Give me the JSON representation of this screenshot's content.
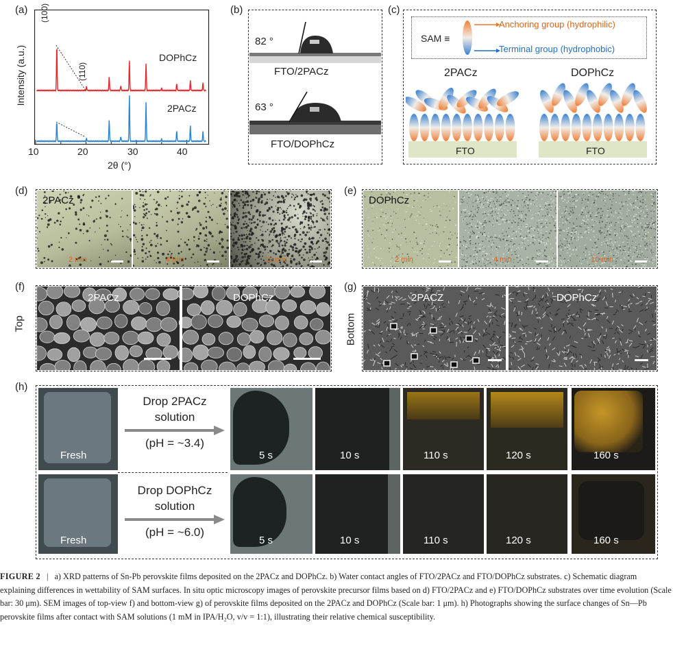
{
  "panels": {
    "a": "(a)",
    "b": "(b)",
    "c": "(c)",
    "d": "(d)",
    "e": "(e)",
    "f": "(f)",
    "g": "(g)",
    "h": "(h)"
  },
  "xrd": {
    "ylabel": "Intensity (a.u.)",
    "xlabel": "2θ (°)",
    "xticks": [
      "10",
      "20",
      "30",
      "40"
    ],
    "series_labels": [
      "DOPhCz",
      "2PACz"
    ],
    "peak_labels": [
      "(100)",
      "(110)"
    ],
    "colors": {
      "DOPhCz": "#e8262a",
      "2PACz": "#2a84d6"
    }
  },
  "chart_data": {
    "type": "line",
    "xlabel": "2θ (°)",
    "ylabel": "Intensity (a.u.)",
    "xlim": [
      10,
      44
    ],
    "series": [
      {
        "name": "DOPhCz",
        "peaks_2theta": [
          14.2,
          20.1,
          24.6,
          26.9,
          28.6,
          31.9,
          35.0,
          38.0,
          40.7,
          43.2
        ],
        "peak_rel_height": [
          0.95,
          0.08,
          0.28,
          0.1,
          0.62,
          0.55,
          0.05,
          0.14,
          0.2,
          0.15
        ]
      },
      {
        "name": "2PACz",
        "peaks_2theta": [
          14.2,
          20.1,
          24.6,
          26.9,
          28.6,
          31.9,
          35.0,
          38.0,
          40.7,
          43.2
        ],
        "peak_rel_height": [
          0.42,
          0.06,
          0.45,
          0.1,
          0.98,
          0.82,
          0.05,
          0.22,
          0.32,
          0.2
        ]
      }
    ]
  },
  "contact": {
    "angle1": "82 °",
    "label1": "FTO/2PACz",
    "angle2": "63 °",
    "label2": "FTO/DOPhCz"
  },
  "schematic": {
    "sam_label": "SAM ≡",
    "anchoring": "Anchoring group (hydrophilic)",
    "terminal": "Terminal group (hydrophobic)",
    "left_title": "2PACz",
    "right_title": "DOPhCz",
    "substrate": "FTO",
    "anchor_color": "#e37a2f",
    "terminal_color": "#1f6fc4"
  },
  "micro_d": {
    "title": "2PACz",
    "times": [
      "2 min",
      "4 min",
      "10 min"
    ]
  },
  "micro_e": {
    "title": "DOPhCz",
    "times": [
      "2 min",
      "4 min",
      "10 min"
    ]
  },
  "sem_f": {
    "side": "Top",
    "labels": [
      "2PACz",
      "DOPhCz"
    ]
  },
  "sem_g": {
    "side": "Bottom",
    "labels": [
      "2PACZ",
      "DOPhCz"
    ]
  },
  "photos": {
    "row1": {
      "fresh": "Fresh",
      "arrow_line1": "Drop 2PACz",
      "arrow_line2": "solution",
      "arrow_line3": "(pH = ~3.4)",
      "times": [
        "5 s",
        "10 s",
        "110 s",
        "120 s",
        "160 s"
      ]
    },
    "row2": {
      "fresh": "Fresh",
      "arrow_line1": "Drop DOPhCz",
      "arrow_line2": "solution",
      "arrow_line3": "(pH = ~6.0)",
      "times": [
        "5 s",
        "10 s",
        "110 s",
        "120 s",
        "160 s"
      ]
    }
  },
  "caption": {
    "label": "FIGURE 2",
    "sep": "|",
    "text": "a) XRD patterns of Sn-Pb perovskite films deposited on the 2PACz and DOPhCz. b) Water contact angles of FTO/2PACz and FTO/DOPhCz substrates. c) Schematic diagram explaining differences in wettability of SAM surfaces. In situ optic microscopy images of perovskite precursor films based on d) FTO/2PACz and e) FTO/DOPhCz substrates over time evolution (Scale bar: 30 μm). SEM images of top-view f) and bottom-view g) of perovskite films deposited on the 2PACz and DOPhCz (Scale bar: 1 μm). h) Photographs showing the surface changes of Sn—Pb perovskite films after contact with SAM solutions (1 mM in IPA/H₂O, v/v = 1:1), illustrating their relative chemical susceptibility."
  }
}
